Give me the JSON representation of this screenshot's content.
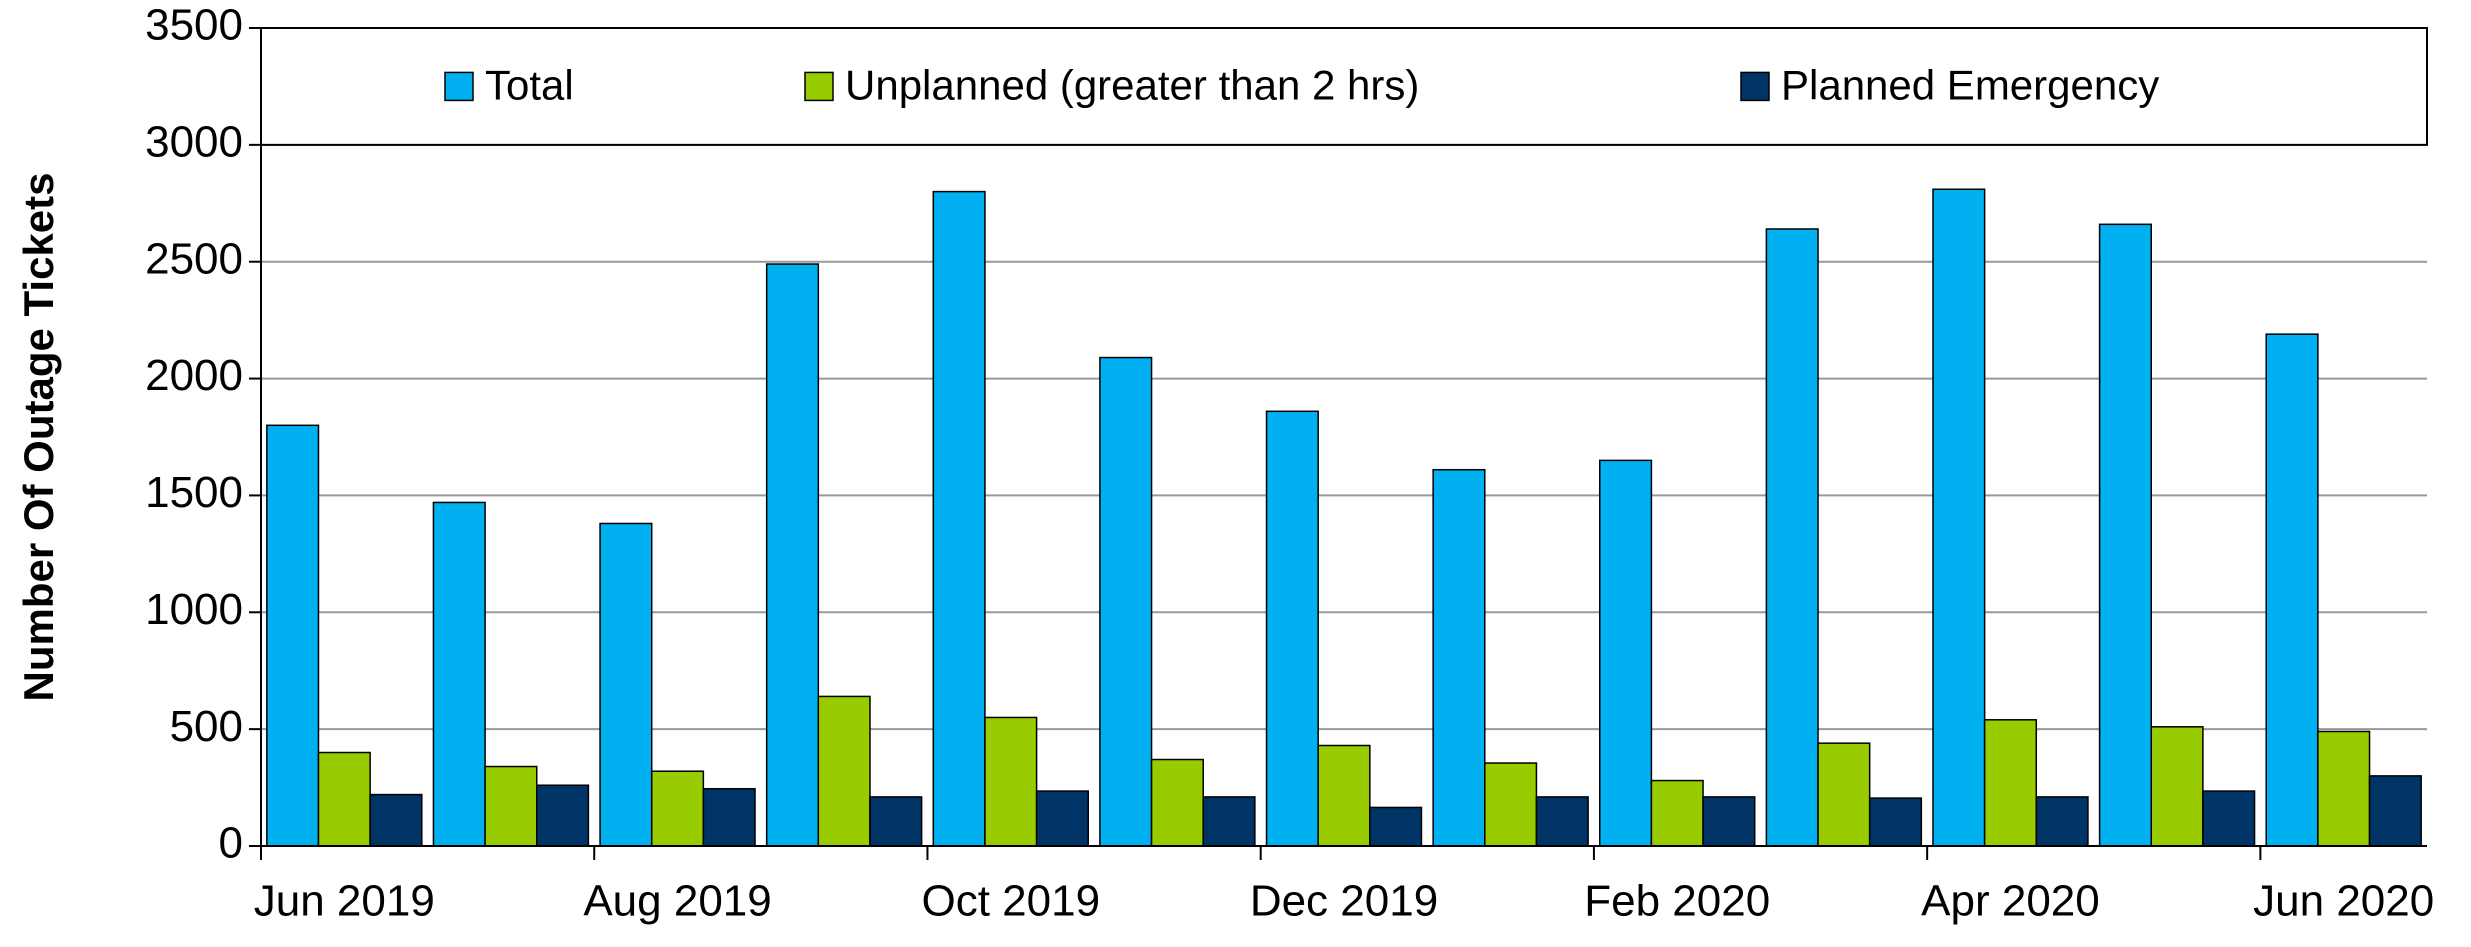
{
  "chart_data": {
    "type": "bar",
    "y_label": "Number Of Outage Tickets",
    "categories": [
      "Jun 2019",
      null,
      "Aug 2019",
      null,
      "Oct 2019",
      null,
      "Dec 2019",
      null,
      "Feb 2020",
      null,
      "Apr 2020",
      null,
      "Jun 2020"
    ],
    "series": [
      {
        "name": "Total",
        "color": "#00b0f0",
        "values": [
          1800,
          1470,
          1380,
          2490,
          2800,
          2090,
          1860,
          1610,
          1650,
          2640,
          2810,
          2660,
          2190
        ]
      },
      {
        "name": "Unplanned (greater than 2 hrs)",
        "color": "#99cc00",
        "values": [
          400,
          340,
          320,
          640,
          550,
          370,
          430,
          355,
          280,
          440,
          540,
          510,
          490
        ]
      },
      {
        "name": "Planned Emergency",
        "color": "#003366",
        "values": [
          220,
          260,
          245,
          210,
          235,
          210,
          165,
          210,
          210,
          205,
          210,
          235,
          300
        ]
      }
    ],
    "ylim": [
      0,
      3500
    ],
    "yticks": [
      0,
      500,
      1000,
      1500,
      2000,
      2500,
      3000,
      3500
    ],
    "grid": true,
    "legend": "top"
  }
}
